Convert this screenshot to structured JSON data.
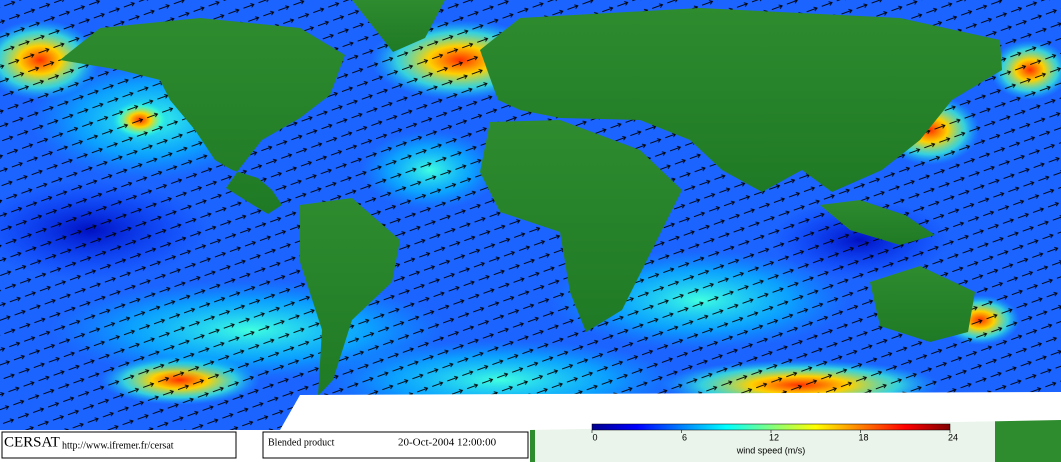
{
  "map": {
    "logo": "CERSAT",
    "url": "http://www.ifremer.fr/cersat",
    "product": "Blended product",
    "datetime": "20-Oct-2004 12:00:00",
    "colorbar": {
      "label": "wind speed (m/s)",
      "lim": [
        0,
        24
      ],
      "ticks": [
        0,
        6,
        12,
        18,
        24
      ],
      "colors": [
        "#00008f",
        "#0000ff",
        "#0080ff",
        "#00ffff",
        "#80ff80",
        "#ffff00",
        "#ff8000",
        "#ff0000",
        "#800000"
      ]
    }
  }
}
